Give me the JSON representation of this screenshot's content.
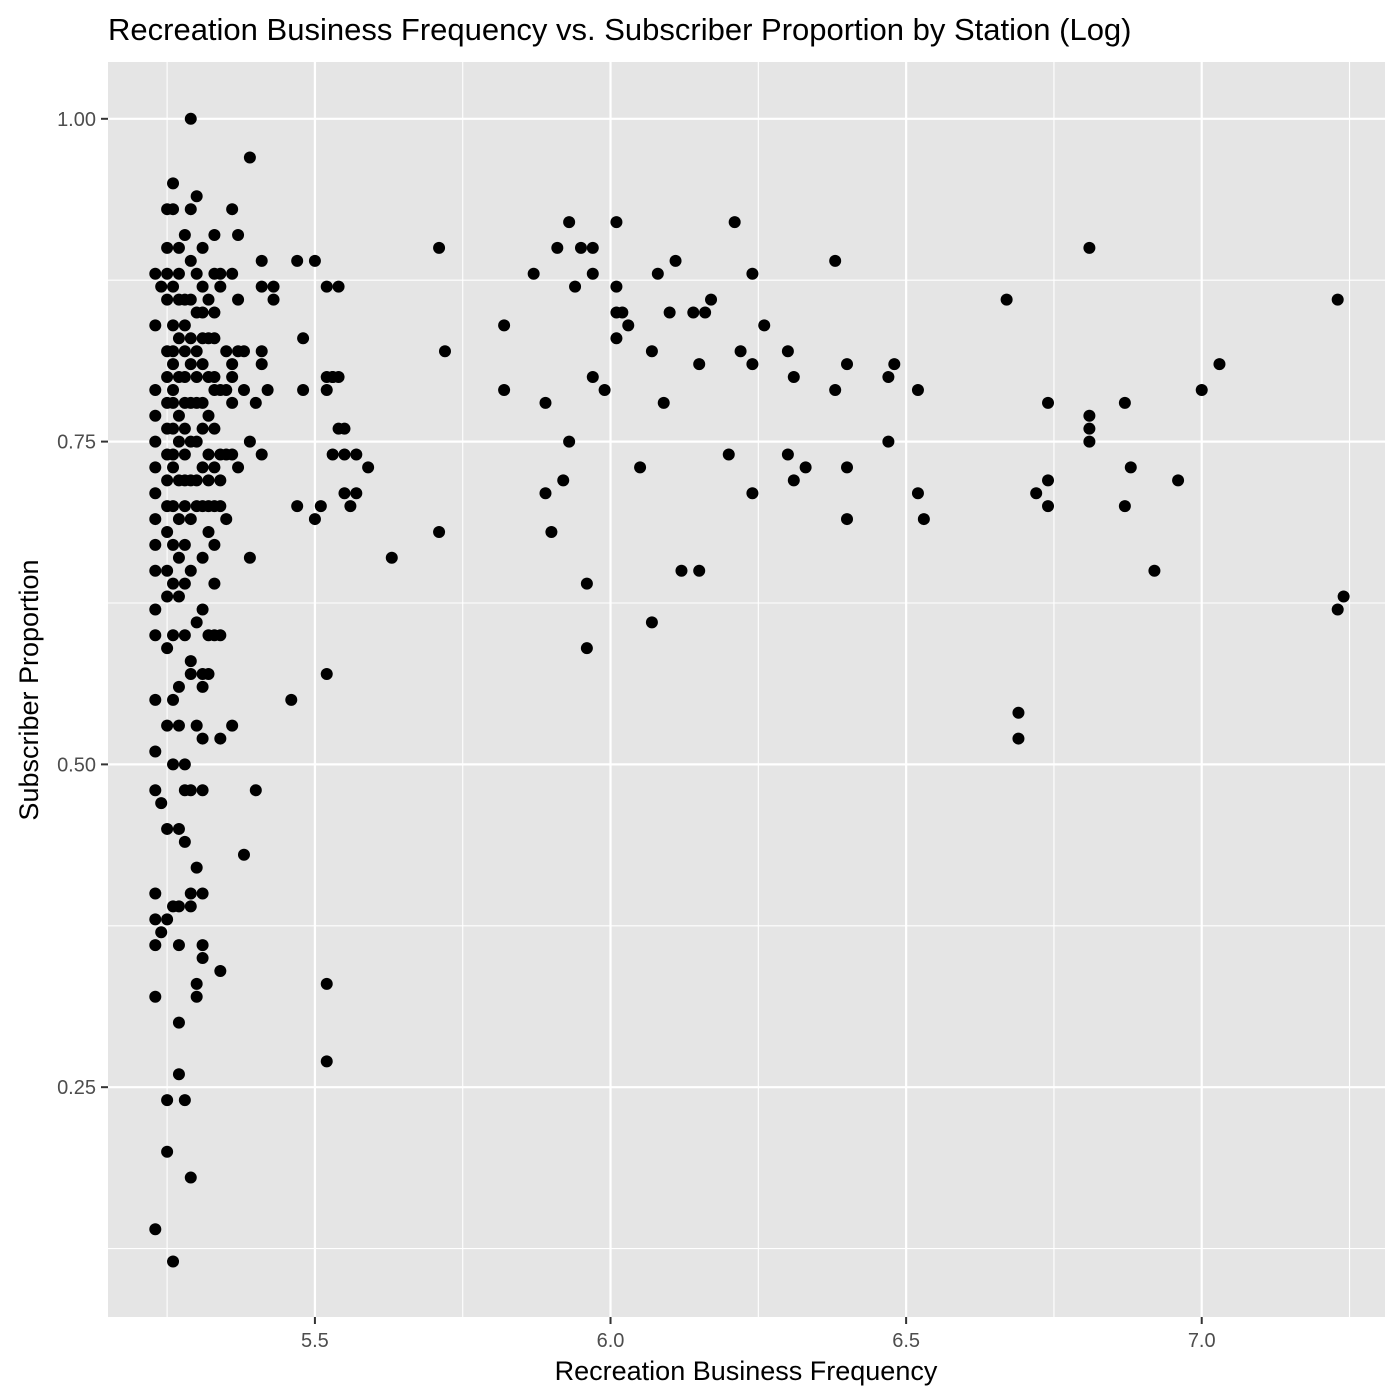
{
  "chart_data": {
    "type": "scatter",
    "title": "Recreation Business Frequency vs. Subscriber Proportion by Station (Log)",
    "xlabel": "Recreation Business Frequency",
    "ylabel": "Subscriber Proportion",
    "xlim": [
      5.15,
      7.31
    ],
    "ylim": [
      0.072,
      1.044
    ],
    "x_ticks": [
      5.5,
      6.0,
      6.5,
      7.0
    ],
    "x_tick_labels": [
      "5.5",
      "6.0",
      "6.5",
      "7.0"
    ],
    "y_ticks": [
      0.25,
      0.5,
      0.75,
      1.0
    ],
    "y_tick_labels": [
      "0.25",
      "0.50",
      "0.75",
      "1.00"
    ],
    "grid": true,
    "legend": "none",
    "colors": {
      "panel": "#e5e5e5",
      "grid": "#ffffff",
      "point": "#000000"
    },
    "points": [
      [
        5.23,
        0.84
      ],
      [
        5.23,
        0.88
      ],
      [
        5.24,
        0.87
      ],
      [
        5.23,
        0.79
      ],
      [
        5.23,
        0.77
      ],
      [
        5.23,
        0.75
      ],
      [
        5.23,
        0.73
      ],
      [
        5.23,
        0.71
      ],
      [
        5.23,
        0.69
      ],
      [
        5.23,
        0.67
      ],
      [
        5.23,
        0.65
      ],
      [
        5.23,
        0.62
      ],
      [
        5.23,
        0.6
      ],
      [
        5.23,
        0.55
      ],
      [
        5.23,
        0.51
      ],
      [
        5.23,
        0.48
      ],
      [
        5.24,
        0.47
      ],
      [
        5.23,
        0.4
      ],
      [
        5.23,
        0.38
      ],
      [
        5.23,
        0.36
      ],
      [
        5.23,
        0.32
      ],
      [
        5.23,
        0.14
      ],
      [
        5.25,
        0.93
      ],
      [
        5.25,
        0.9
      ],
      [
        5.25,
        0.88
      ],
      [
        5.25,
        0.86
      ],
      [
        5.25,
        0.82
      ],
      [
        5.25,
        0.8
      ],
      [
        5.25,
        0.78
      ],
      [
        5.25,
        0.76
      ],
      [
        5.25,
        0.74
      ],
      [
        5.25,
        0.72
      ],
      [
        5.25,
        0.7
      ],
      [
        5.25,
        0.68
      ],
      [
        5.25,
        0.65
      ],
      [
        5.25,
        0.63
      ],
      [
        5.25,
        0.59
      ],
      [
        5.25,
        0.53
      ],
      [
        5.25,
        0.45
      ],
      [
        5.25,
        0.38
      ],
      [
        5.24,
        0.37
      ],
      [
        5.25,
        0.24
      ],
      [
        5.25,
        0.2
      ],
      [
        5.26,
        0.95
      ],
      [
        5.26,
        0.93
      ],
      [
        5.26,
        0.87
      ],
      [
        5.26,
        0.84
      ],
      [
        5.26,
        0.82
      ],
      [
        5.26,
        0.81
      ],
      [
        5.26,
        0.79
      ],
      [
        5.26,
        0.78
      ],
      [
        5.26,
        0.76
      ],
      [
        5.26,
        0.74
      ],
      [
        5.26,
        0.73
      ],
      [
        5.26,
        0.7
      ],
      [
        5.26,
        0.67
      ],
      [
        5.26,
        0.64
      ],
      [
        5.26,
        0.6
      ],
      [
        5.26,
        0.55
      ],
      [
        5.26,
        0.5
      ],
      [
        5.26,
        0.39
      ],
      [
        5.26,
        0.115
      ],
      [
        5.27,
        0.9
      ],
      [
        5.27,
        0.88
      ],
      [
        5.27,
        0.86
      ],
      [
        5.27,
        0.83
      ],
      [
        5.27,
        0.8
      ],
      [
        5.27,
        0.77
      ],
      [
        5.27,
        0.75
      ],
      [
        5.27,
        0.72
      ],
      [
        5.27,
        0.69
      ],
      [
        5.27,
        0.66
      ],
      [
        5.27,
        0.63
      ],
      [
        5.27,
        0.56
      ],
      [
        5.27,
        0.53
      ],
      [
        5.27,
        0.45
      ],
      [
        5.27,
        0.39
      ],
      [
        5.27,
        0.36
      ],
      [
        5.27,
        0.3
      ],
      [
        5.27,
        0.26
      ],
      [
        5.28,
        0.91
      ],
      [
        5.28,
        0.86
      ],
      [
        5.28,
        0.84
      ],
      [
        5.28,
        0.82
      ],
      [
        5.28,
        0.8
      ],
      [
        5.28,
        0.78
      ],
      [
        5.28,
        0.76
      ],
      [
        5.28,
        0.74
      ],
      [
        5.28,
        0.72
      ],
      [
        5.28,
        0.7
      ],
      [
        5.28,
        0.67
      ],
      [
        5.28,
        0.64
      ],
      [
        5.28,
        0.6
      ],
      [
        5.28,
        0.5
      ],
      [
        5.28,
        0.48
      ],
      [
        5.28,
        0.44
      ],
      [
        5.28,
        0.24
      ],
      [
        5.29,
        1.0
      ],
      [
        5.29,
        0.93
      ],
      [
        5.29,
        0.89
      ],
      [
        5.29,
        0.86
      ],
      [
        5.29,
        0.83
      ],
      [
        5.29,
        0.81
      ],
      [
        5.29,
        0.78
      ],
      [
        5.29,
        0.75
      ],
      [
        5.29,
        0.72
      ],
      [
        5.29,
        0.69
      ],
      [
        5.29,
        0.65
      ],
      [
        5.29,
        0.58
      ],
      [
        5.29,
        0.57
      ],
      [
        5.29,
        0.48
      ],
      [
        5.29,
        0.4
      ],
      [
        5.29,
        0.39
      ],
      [
        5.29,
        0.18
      ],
      [
        5.3,
        0.94
      ],
      [
        5.3,
        0.88
      ],
      [
        5.3,
        0.85
      ],
      [
        5.3,
        0.82
      ],
      [
        5.3,
        0.8
      ],
      [
        5.3,
        0.78
      ],
      [
        5.3,
        0.75
      ],
      [
        5.3,
        0.72
      ],
      [
        5.3,
        0.7
      ],
      [
        5.3,
        0.61
      ],
      [
        5.3,
        0.53
      ],
      [
        5.3,
        0.42
      ],
      [
        5.3,
        0.33
      ],
      [
        5.3,
        0.32
      ],
      [
        5.31,
        0.9
      ],
      [
        5.31,
        0.87
      ],
      [
        5.31,
        0.85
      ],
      [
        5.31,
        0.83
      ],
      [
        5.31,
        0.81
      ],
      [
        5.31,
        0.78
      ],
      [
        5.31,
        0.76
      ],
      [
        5.31,
        0.73
      ],
      [
        5.31,
        0.7
      ],
      [
        5.31,
        0.66
      ],
      [
        5.31,
        0.62
      ],
      [
        5.31,
        0.57
      ],
      [
        5.31,
        0.56
      ],
      [
        5.31,
        0.52
      ],
      [
        5.31,
        0.48
      ],
      [
        5.31,
        0.4
      ],
      [
        5.31,
        0.36
      ],
      [
        5.31,
        0.35
      ],
      [
        5.32,
        0.86
      ],
      [
        5.32,
        0.83
      ],
      [
        5.32,
        0.8
      ],
      [
        5.32,
        0.77
      ],
      [
        5.32,
        0.74
      ],
      [
        5.32,
        0.72
      ],
      [
        5.32,
        0.7
      ],
      [
        5.32,
        0.68
      ],
      [
        5.32,
        0.6
      ],
      [
        5.32,
        0.57
      ],
      [
        5.33,
        0.91
      ],
      [
        5.33,
        0.88
      ],
      [
        5.33,
        0.85
      ],
      [
        5.33,
        0.83
      ],
      [
        5.33,
        0.8
      ],
      [
        5.33,
        0.79
      ],
      [
        5.33,
        0.76
      ],
      [
        5.33,
        0.73
      ],
      [
        5.33,
        0.7
      ],
      [
        5.33,
        0.67
      ],
      [
        5.33,
        0.64
      ],
      [
        5.33,
        0.6
      ],
      [
        5.34,
        0.88
      ],
      [
        5.34,
        0.87
      ],
      [
        5.34,
        0.79
      ],
      [
        5.34,
        0.74
      ],
      [
        5.34,
        0.72
      ],
      [
        5.34,
        0.7
      ],
      [
        5.34,
        0.6
      ],
      [
        5.34,
        0.52
      ],
      [
        5.34,
        0.34
      ],
      [
        5.35,
        0.82
      ],
      [
        5.35,
        0.79
      ],
      [
        5.35,
        0.74
      ],
      [
        5.35,
        0.69
      ],
      [
        5.36,
        0.93
      ],
      [
        5.36,
        0.88
      ],
      [
        5.36,
        0.81
      ],
      [
        5.36,
        0.8
      ],
      [
        5.36,
        0.78
      ],
      [
        5.36,
        0.74
      ],
      [
        5.36,
        0.53
      ],
      [
        5.37,
        0.91
      ],
      [
        5.37,
        0.86
      ],
      [
        5.37,
        0.82
      ],
      [
        5.37,
        0.73
      ],
      [
        5.38,
        0.82
      ],
      [
        5.38,
        0.79
      ],
      [
        5.38,
        0.43
      ],
      [
        5.39,
        0.97
      ],
      [
        5.39,
        0.75
      ],
      [
        5.39,
        0.66
      ],
      [
        5.4,
        0.78
      ],
      [
        5.4,
        0.48
      ],
      [
        5.41,
        0.89
      ],
      [
        5.41,
        0.87
      ],
      [
        5.41,
        0.82
      ],
      [
        5.41,
        0.81
      ],
      [
        5.41,
        0.74
      ],
      [
        5.42,
        0.79
      ],
      [
        5.43,
        0.87
      ],
      [
        5.43,
        0.86
      ],
      [
        5.46,
        0.55
      ],
      [
        5.47,
        0.7
      ],
      [
        5.47,
        0.89
      ],
      [
        5.48,
        0.83
      ],
      [
        5.48,
        0.79
      ],
      [
        5.5,
        0.89
      ],
      [
        5.5,
        0.69
      ],
      [
        5.51,
        0.7
      ],
      [
        5.52,
        0.87
      ],
      [
        5.52,
        0.8
      ],
      [
        5.52,
        0.79
      ],
      [
        5.52,
        0.57
      ],
      [
        5.52,
        0.33
      ],
      [
        5.52,
        0.27
      ],
      [
        5.53,
        0.8
      ],
      [
        5.53,
        0.74
      ],
      [
        5.53,
        0.8
      ],
      [
        5.54,
        0.87
      ],
      [
        5.54,
        0.76
      ],
      [
        5.54,
        0.8
      ],
      [
        5.55,
        0.76
      ],
      [
        5.55,
        0.74
      ],
      [
        5.55,
        0.71
      ],
      [
        5.56,
        0.7
      ],
      [
        5.57,
        0.71
      ],
      [
        5.57,
        0.74
      ],
      [
        5.59,
        0.73
      ],
      [
        5.63,
        0.66
      ],
      [
        5.71,
        0.9
      ],
      [
        5.71,
        0.68
      ],
      [
        5.72,
        0.82
      ],
      [
        5.82,
        0.84
      ],
      [
        5.82,
        0.79
      ],
      [
        5.87,
        0.88
      ],
      [
        5.89,
        0.71
      ],
      [
        5.89,
        0.78
      ],
      [
        5.9,
        0.68
      ],
      [
        5.91,
        0.9
      ],
      [
        5.92,
        0.72
      ],
      [
        5.93,
        0.92
      ],
      [
        5.93,
        0.75
      ],
      [
        5.94,
        0.87
      ],
      [
        5.95,
        0.9
      ],
      [
        5.96,
        0.64
      ],
      [
        5.96,
        0.59
      ],
      [
        5.97,
        0.88
      ],
      [
        5.97,
        0.8
      ],
      [
        5.97,
        0.9
      ],
      [
        5.99,
        0.79
      ],
      [
        6.01,
        0.92
      ],
      [
        6.01,
        0.87
      ],
      [
        6.01,
        0.85
      ],
      [
        6.01,
        0.83
      ],
      [
        6.02,
        0.85
      ],
      [
        6.03,
        0.84
      ],
      [
        6.05,
        0.73
      ],
      [
        6.07,
        0.82
      ],
      [
        6.07,
        0.61
      ],
      [
        6.08,
        0.88
      ],
      [
        6.09,
        0.78
      ],
      [
        6.1,
        0.85
      ],
      [
        6.11,
        0.89
      ],
      [
        6.12,
        0.65
      ],
      [
        6.14,
        0.85
      ],
      [
        6.15,
        0.81
      ],
      [
        6.15,
        0.65
      ],
      [
        6.16,
        0.85
      ],
      [
        6.17,
        0.86
      ],
      [
        6.2,
        0.74
      ],
      [
        6.21,
        0.92
      ],
      [
        6.22,
        0.82
      ],
      [
        6.24,
        0.88
      ],
      [
        6.24,
        0.81
      ],
      [
        6.24,
        0.71
      ],
      [
        6.26,
        0.84
      ],
      [
        6.3,
        0.82
      ],
      [
        6.3,
        0.74
      ],
      [
        6.31,
        0.8
      ],
      [
        6.31,
        0.72
      ],
      [
        6.33,
        0.73
      ],
      [
        6.38,
        0.89
      ],
      [
        6.38,
        0.79
      ],
      [
        6.4,
        0.81
      ],
      [
        6.4,
        0.69
      ],
      [
        6.4,
        0.73
      ],
      [
        6.47,
        0.8
      ],
      [
        6.47,
        0.75
      ],
      [
        6.48,
        0.81
      ],
      [
        6.52,
        0.79
      ],
      [
        6.52,
        0.71
      ],
      [
        6.53,
        0.69
      ],
      [
        6.67,
        0.86
      ],
      [
        6.69,
        0.54
      ],
      [
        6.69,
        0.52
      ],
      [
        6.72,
        0.71
      ],
      [
        6.74,
        0.72
      ],
      [
        6.74,
        0.78
      ],
      [
        6.74,
        0.7
      ],
      [
        6.81,
        0.9
      ],
      [
        6.81,
        0.77
      ],
      [
        6.81,
        0.76
      ],
      [
        6.81,
        0.75
      ],
      [
        6.87,
        0.78
      ],
      [
        6.87,
        0.7
      ],
      [
        6.88,
        0.73
      ],
      [
        6.92,
        0.65
      ],
      [
        6.96,
        0.72
      ],
      [
        7.0,
        0.79
      ],
      [
        7.03,
        0.81
      ],
      [
        7.23,
        0.86
      ],
      [
        7.23,
        0.62
      ],
      [
        7.24,
        0.63
      ]
    ]
  }
}
